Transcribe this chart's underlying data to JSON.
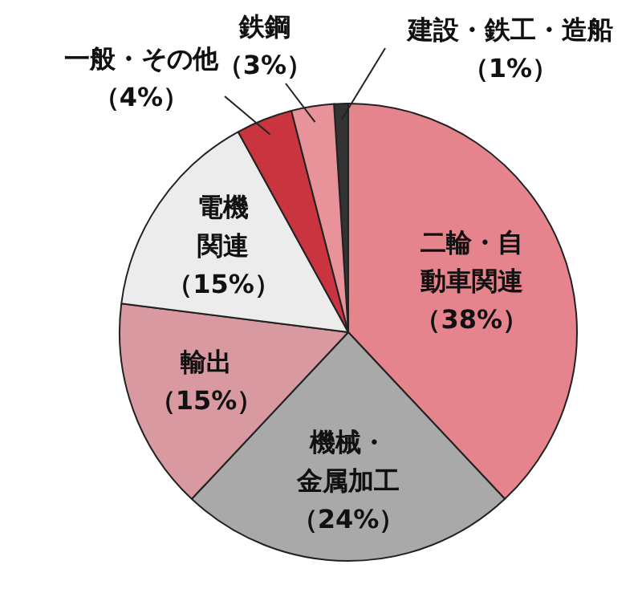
{
  "chart_data": {
    "type": "pie",
    "categories": [
      "建設・鉄工・造船",
      "二輪・自動車関連",
      "機械・金属加工",
      "輸出",
      "電機関連",
      "一般・その他",
      "鉄鋼"
    ],
    "values": [
      1,
      38,
      24,
      15,
      15,
      4,
      3
    ],
    "colors": [
      "#333333",
      "#e6848e",
      "#a9a9a9",
      "#d89aa0",
      "#ececec",
      "#c9343f",
      "#e8939a"
    ],
    "value_labels": [
      "（1%）",
      "（38%）",
      "（24%）",
      "（15%）",
      "（15%）",
      "（4%）",
      "（3%）"
    ],
    "legend": false
  }
}
